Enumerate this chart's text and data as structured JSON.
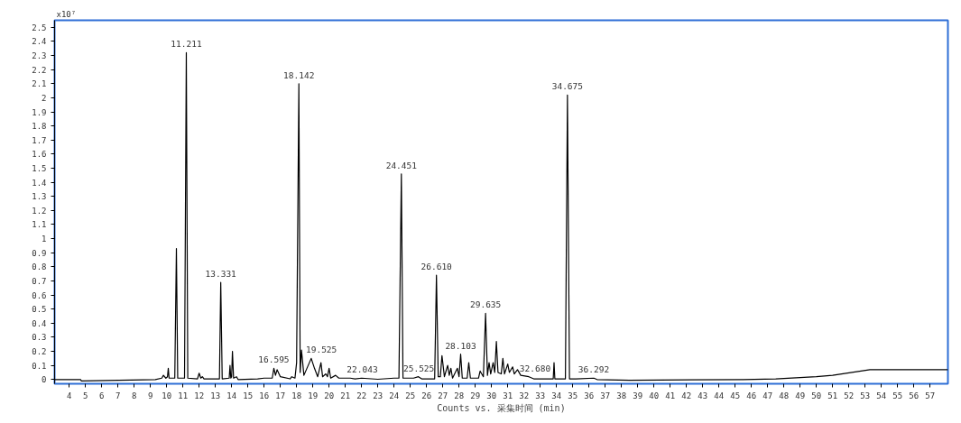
{
  "chart_data": {
    "type": "line",
    "ylabel": "x10⁷",
    "xlabel": "Counts vs. 采集时间 (min)",
    "xlim": [
      3.1,
      58.1
    ],
    "ylim": [
      -0.03,
      2.55
    ],
    "xticks": [
      4,
      5,
      6,
      7,
      8,
      9,
      10,
      11,
      12,
      13,
      14,
      15,
      16,
      17,
      18,
      19,
      20,
      21,
      22,
      23,
      24,
      25,
      26,
      27,
      28,
      29,
      30,
      31,
      32,
      33,
      34,
      35,
      36,
      37,
      38,
      39,
      40,
      41,
      42,
      43,
      44,
      45,
      46,
      47,
      48,
      49,
      50,
      51,
      52,
      53,
      54,
      55,
      56,
      57
    ],
    "yticks": [
      0,
      0.1,
      0.2,
      0.3,
      0.4,
      0.5,
      0.6,
      0.7,
      0.8,
      0.9,
      1,
      1.1,
      1.2,
      1.3,
      1.4,
      1.5,
      1.6,
      1.7,
      1.8,
      1.9,
      2,
      2.1,
      2.2,
      2.3,
      2.4,
      2.5
    ],
    "grid": false,
    "marker": "none",
    "line_style": "solid",
    "series": [
      {
        "color": "#000000",
        "x": [
          3.1,
          4.7,
          4.75,
          9.3,
          9.7,
          9.8,
          9.95,
          10.05,
          10.1,
          10.15,
          10.5,
          10.6,
          10.68,
          11.1,
          11.21,
          11.3,
          11.9,
          12.0,
          12.1,
          12.2,
          12.3,
          13.25,
          13.33,
          13.42,
          13.85,
          13.9,
          13.95,
          14.0,
          14.05,
          14.12,
          14.3,
          14.4,
          15.6,
          16.0,
          16.5,
          16.6,
          16.7,
          16.8,
          17.0,
          17.6,
          17.7,
          17.9,
          18.0,
          18.14,
          18.22,
          18.3,
          18.45,
          18.9,
          19.1,
          19.3,
          19.5,
          19.6,
          19.8,
          19.9,
          20.0,
          20.1,
          20.4,
          20.6,
          21.3,
          21.6,
          22.0,
          23.0,
          24.0,
          24.3,
          24.45,
          24.55,
          25.2,
          25.5,
          25.7,
          26.5,
          26.61,
          26.72,
          26.85,
          26.95,
          27.1,
          27.3,
          27.4,
          27.5,
          27.6,
          27.9,
          28.0,
          28.1,
          28.2,
          28.5,
          28.6,
          28.7,
          29.2,
          29.3,
          29.5,
          29.635,
          29.75,
          29.85,
          29.95,
          30.1,
          30.2,
          30.3,
          30.4,
          30.6,
          30.7,
          30.8,
          31.0,
          31.1,
          31.3,
          31.4,
          31.6,
          31.8,
          32.3,
          32.6,
          33.8,
          33.85,
          33.9,
          34.55,
          34.675,
          34.8,
          35.2,
          36.3,
          36.5,
          38.5,
          45.5,
          47.5,
          50.0,
          51.0,
          53.3,
          58.1
        ],
        "values": [
          0,
          0,
          -0.01,
          0,
          0.01,
          0.03,
          0.01,
          0.02,
          0.08,
          0.01,
          0.01,
          0.93,
          0.01,
          0.01,
          2.32,
          0.01,
          0.005,
          0.045,
          0.01,
          0.02,
          0.005,
          0.005,
          0.69,
          0.005,
          0.01,
          0.1,
          0.01,
          0.02,
          0.2,
          0.01,
          0.02,
          0,
          0.005,
          0.01,
          0.01,
          0.08,
          0.03,
          0.07,
          0.02,
          0.005,
          0.02,
          0.01,
          0.12,
          2.1,
          0.05,
          0.21,
          0.03,
          0.15,
          0.08,
          0.02,
          0.12,
          0.02,
          0.04,
          0.02,
          0.08,
          0.01,
          0.03,
          0.01,
          0.01,
          0.005,
          0.01,
          0.002,
          0.01,
          0.01,
          1.46,
          0.01,
          0.01,
          0.02,
          0.005,
          0.005,
          0.74,
          0.02,
          0.02,
          0.17,
          0.02,
          0.1,
          0.03,
          0.08,
          0.01,
          0.08,
          0.02,
          0.18,
          0.01,
          0.01,
          0.12,
          0.01,
          0.01,
          0.06,
          0.02,
          0.47,
          0.03,
          0.12,
          0.04,
          0.12,
          0.05,
          0.27,
          0.05,
          0.04,
          0.15,
          0.04,
          0.11,
          0.05,
          0.09,
          0.04,
          0.07,
          0.03,
          0.02,
          0.005,
          0.005,
          0.12,
          0.005,
          0.005,
          2.02,
          0.005,
          0.005,
          0.01,
          0,
          -0.005,
          0,
          0.005,
          0.02,
          0.03,
          0.07,
          0.07
        ]
      }
    ],
    "annotations": [
      {
        "text": "11.211",
        "x": 11.211,
        "y": 2.32
      },
      {
        "text": "18.142",
        "x": 18.142,
        "y": 2.1
      },
      {
        "text": "13.331",
        "x": 13.331,
        "y": 0.69
      },
      {
        "text": "16.595",
        "x": 16.595,
        "y": 0.08
      },
      {
        "text": "19.525",
        "x": 19.525,
        "y": 0.15
      },
      {
        "text": "22.043",
        "x": 22.043,
        "y": 0.01
      },
      {
        "text": "24.451",
        "x": 24.451,
        "y": 1.46
      },
      {
        "text": "25.525",
        "x": 25.525,
        "y": 0.02
      },
      {
        "text": "26.610",
        "x": 26.61,
        "y": 0.74
      },
      {
        "text": "28.103",
        "x": 28.103,
        "y": 0.18
      },
      {
        "text": "29.635",
        "x": 29.635,
        "y": 0.47
      },
      {
        "text": "32.680",
        "x": 32.68,
        "y": 0.02
      },
      {
        "text": "34.675",
        "x": 34.675,
        "y": 2.02
      },
      {
        "text": "36.292",
        "x": 36.292,
        "y": 0.01
      }
    ]
  }
}
